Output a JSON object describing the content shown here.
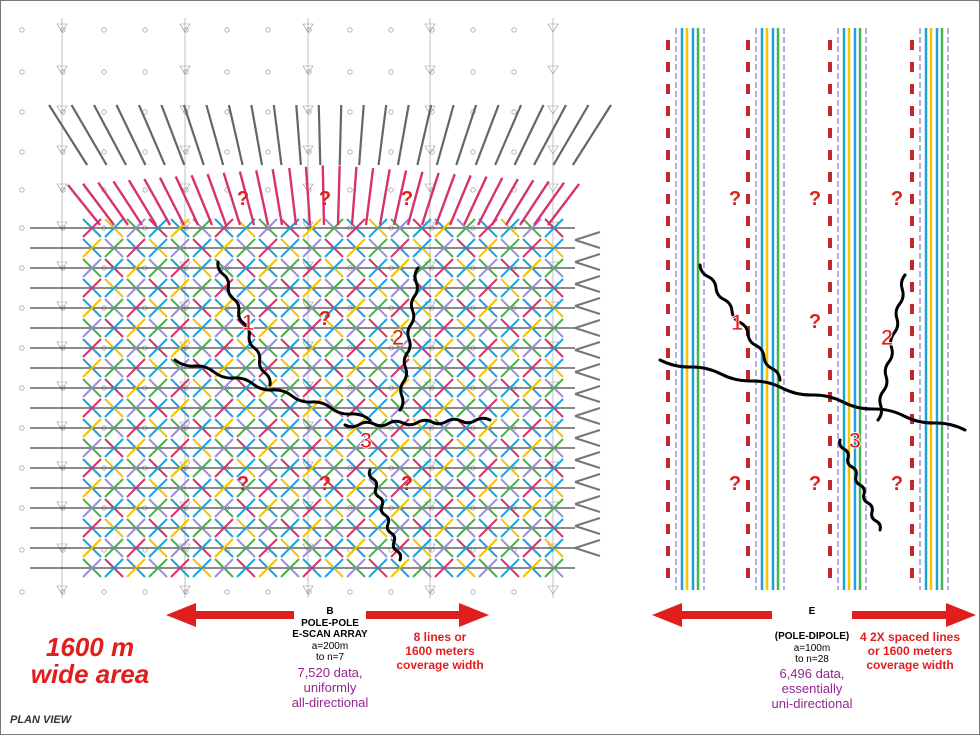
{
  "left_panel": {
    "question_marks": [
      "?",
      "?",
      "?",
      "?",
      "?",
      "?",
      "?"
    ],
    "zone_labels": [
      "1",
      "2",
      "3"
    ],
    "array_letter": "B",
    "array_name_line1": "POLE-POLE",
    "array_name_line2": "E-SCAN ARRAY",
    "spacing": "a=200m",
    "n_levels": "to n=7",
    "coverage_line1": "8 lines or",
    "coverage_line2": "1600 meters",
    "coverage_line3": "coverage width",
    "data_line1": "7,520 data,",
    "data_line2": "uniformly",
    "data_line3": "all-directional"
  },
  "right_panel": {
    "question_marks": [
      "?",
      "?",
      "?",
      "?",
      "?",
      "?",
      "?",
      "?"
    ],
    "zone_labels": [
      "1",
      "2",
      "3"
    ],
    "array_letter": "E",
    "array_name": "(POLE-DIPOLE)",
    "spacing": "a=100m",
    "n_levels": "to n=28",
    "coverage_line1": "4 2X spaced lines",
    "coverage_line2": "or 1600 meters",
    "coverage_line3": "coverage width",
    "data_line1": "6,496 data,",
    "data_line2": "essentially",
    "data_line3": "uni-directional"
  },
  "area_line1": "1600 m",
  "area_line2": "wide area",
  "view_label": "PLAN VIEW",
  "colors": {
    "red": "#e01e1e",
    "purple": "#93278f",
    "cyan": "#1fa2dc",
    "yellow": "#f5c400",
    "green": "#4caf50",
    "magenta": "#d6336c",
    "lavender": "#9b8fd6"
  }
}
